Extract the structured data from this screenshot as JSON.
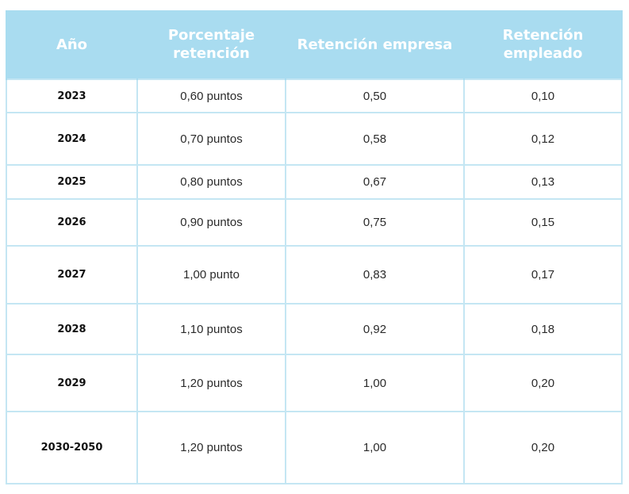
{
  "table": {
    "headers": {
      "year": "Año",
      "percentage": "Porcentaje retención",
      "company": "Retención empresa",
      "employee": "Retención empleado"
    },
    "rows": [
      {
        "year": "2023",
        "percentage": "0,60 puntos",
        "company": "0,50",
        "employee": "0,10"
      },
      {
        "year": "2024",
        "percentage": "0,70 puntos",
        "company": "0,58",
        "employee": "0,12"
      },
      {
        "year": "2025",
        "percentage": "0,80 puntos",
        "company": "0,67",
        "employee": "0,13"
      },
      {
        "year": "2026",
        "percentage": "0,90 puntos",
        "company": "0,75",
        "employee": "0,15"
      },
      {
        "year": "2027",
        "percentage": "1,00 punto",
        "company": "0,83",
        "employee": "0,17"
      },
      {
        "year": "2028",
        "percentage": "1,10 puntos",
        "company": "0,92",
        "employee": "0,18"
      },
      {
        "year": "2029",
        "percentage": "1,20 puntos",
        "company": "1,00",
        "employee": "0,20"
      },
      {
        "year": "2030-2050",
        "percentage": "1,20 puntos",
        "company": "1,00",
        "employee": "0,20"
      }
    ]
  },
  "colors": {
    "header_background": "#a9dcf0",
    "header_text": "#ffffff",
    "grid_line": "#c4e6f3"
  }
}
